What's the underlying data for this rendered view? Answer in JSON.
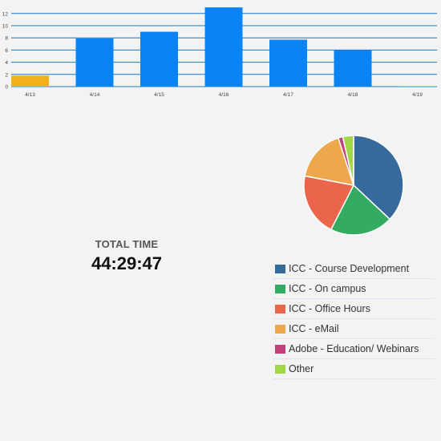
{
  "chart_data": [
    {
      "type": "bar",
      "categories": [
        "4/13",
        "4/14",
        "4/15",
        "4/16",
        "4/17",
        "4/18",
        "4/19"
      ],
      "values": [
        1.8,
        7.9,
        9.0,
        13.0,
        7.7,
        6.0,
        0.1
      ],
      "bar_colors": [
        "#f2b01e",
        "#0a84f5",
        "#0a84f5",
        "#0a84f5",
        "#0a84f5",
        "#0a84f5",
        "#f2b01e"
      ],
      "y_ticks": [
        "0",
        "2",
        "4",
        "6",
        "8",
        "10",
        "12"
      ],
      "ylim": [
        0,
        14
      ],
      "grid": true,
      "grid_color": "#1a78c8",
      "title": "",
      "xlabel": "",
      "ylabel": ""
    },
    {
      "type": "pie",
      "slices": [
        {
          "label": "ICC - Course Development",
          "value": 37.0,
          "color": "#376a9c"
        },
        {
          "label": "ICC - On campus",
          "value": 20.5,
          "color": "#33ab61"
        },
        {
          "label": "ICC - Office Hours",
          "value": 20.5,
          "color": "#eb654b"
        },
        {
          "label": "ICC - eMail",
          "value": 17.0,
          "color": "#eca84b"
        },
        {
          "label": "Adobe - Education/ Webinars",
          "value": 1.5,
          "color": "#c53f7a"
        },
        {
          "label": "Other",
          "value": 3.5,
          "color": "#a2d747"
        }
      ],
      "start_angle_deg": 0,
      "direction": "clockwise",
      "legend_position": "bottom"
    }
  ],
  "total": {
    "label": "TOTAL TIME",
    "value": "44:29:47"
  },
  "legend": {
    "items": [
      {
        "label": "ICC - Course Development",
        "color": "#376a9c"
      },
      {
        "label": "ICC - On campus",
        "color": "#33ab61"
      },
      {
        "label": "ICC - Office Hours",
        "color": "#eb654b"
      },
      {
        "label": "ICC - eMail",
        "color": "#eca84b"
      },
      {
        "label": "Adobe - Education/ Webinars",
        "color": "#c53f7a"
      },
      {
        "label": "Other",
        "color": "#a2d747"
      }
    ]
  }
}
